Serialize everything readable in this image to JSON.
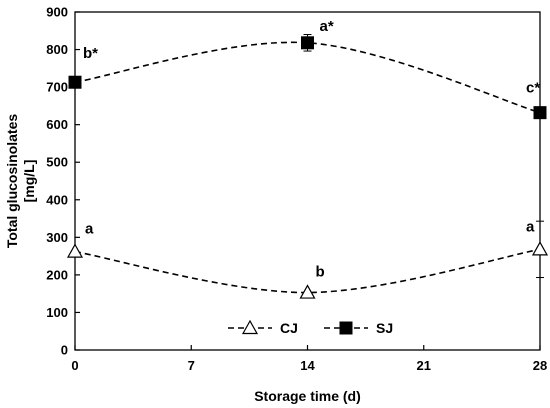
{
  "chart_data": {
    "type": "line",
    "xlabel": "Storage time (d)",
    "ylabel_lines": [
      "Total glucosinolates",
      "[mg/L]"
    ],
    "xlim": [
      0,
      28
    ],
    "ylim": [
      0,
      900
    ],
    "x_ticks": [
      0,
      7,
      14,
      21,
      28
    ],
    "y_ticks": [
      0,
      100,
      200,
      300,
      400,
      500,
      600,
      700,
      800,
      900
    ],
    "grid": false,
    "legend_placement": "bottom-center",
    "series": [
      {
        "name": "CJ",
        "marker": "open-triangle",
        "line_style": "dashed",
        "color": "#000000",
        "x": [
          0,
          14,
          28
        ],
        "y": [
          262,
          153,
          268
        ],
        "error": [
          0,
          0,
          75
        ],
        "point_labels": [
          "a",
          "b",
          "a"
        ]
      },
      {
        "name": "SJ",
        "marker": "filled-square",
        "line_style": "dashed",
        "color": "#000000",
        "x": [
          0,
          14,
          28
        ],
        "y": [
          713,
          818,
          632
        ],
        "error": [
          10,
          22,
          15
        ],
        "point_labels": [
          "b*",
          "a*",
          "c*"
        ]
      }
    ]
  }
}
